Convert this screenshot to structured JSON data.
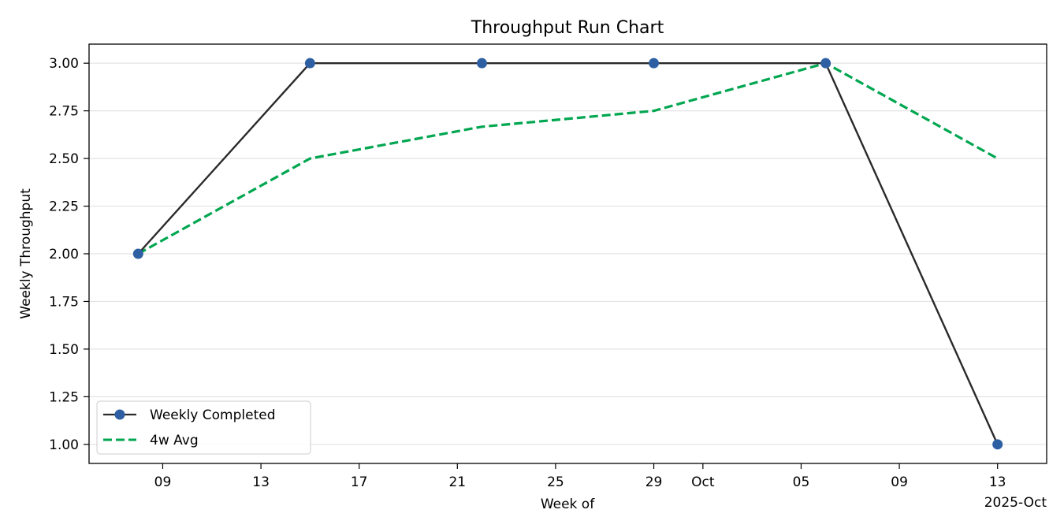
{
  "chart_data": {
    "type": "line",
    "title": "Throughput Run Chart",
    "xlabel": "Week of",
    "ylabel": "Weekly Throughput",
    "xlim": [
      "2025-09-06",
      "2025-10-15"
    ],
    "ylim": [
      0.9,
      3.1
    ],
    "grid": "horizontal",
    "legend_position": "lower-left",
    "x_ticks": [
      {
        "date": "2025-09-09",
        "label": "09"
      },
      {
        "date": "2025-09-13",
        "label": "13"
      },
      {
        "date": "2025-09-17",
        "label": "17"
      },
      {
        "date": "2025-09-21",
        "label": "21"
      },
      {
        "date": "2025-09-25",
        "label": "25"
      },
      {
        "date": "2025-09-29",
        "label": "29"
      },
      {
        "date": "2025-10-01",
        "label": "Oct"
      },
      {
        "date": "2025-10-05",
        "label": "05"
      },
      {
        "date": "2025-10-09",
        "label": "09"
      },
      {
        "date": "2025-10-13",
        "label": "13"
      }
    ],
    "x_offset_label": "2025-Oct",
    "y_ticks": [
      "1.00",
      "1.25",
      "1.50",
      "1.75",
      "2.00",
      "2.25",
      "2.50",
      "2.75",
      "3.00"
    ],
    "x": [
      "2025-09-08",
      "2025-09-15",
      "2025-09-22",
      "2025-09-29",
      "2025-10-06",
      "2025-10-13"
    ],
    "series": [
      {
        "name": "Weekly Completed",
        "values": [
          2,
          3,
          3,
          3,
          3,
          1
        ],
        "color": "#2a2a2a",
        "marker_color": "#2e5fa3",
        "style": "solid-markers"
      },
      {
        "name": "4w Avg",
        "values": [
          2.0,
          2.5,
          2.6667,
          2.75,
          3.0,
          2.5
        ],
        "color": "#00a650",
        "style": "dashed"
      }
    ]
  }
}
